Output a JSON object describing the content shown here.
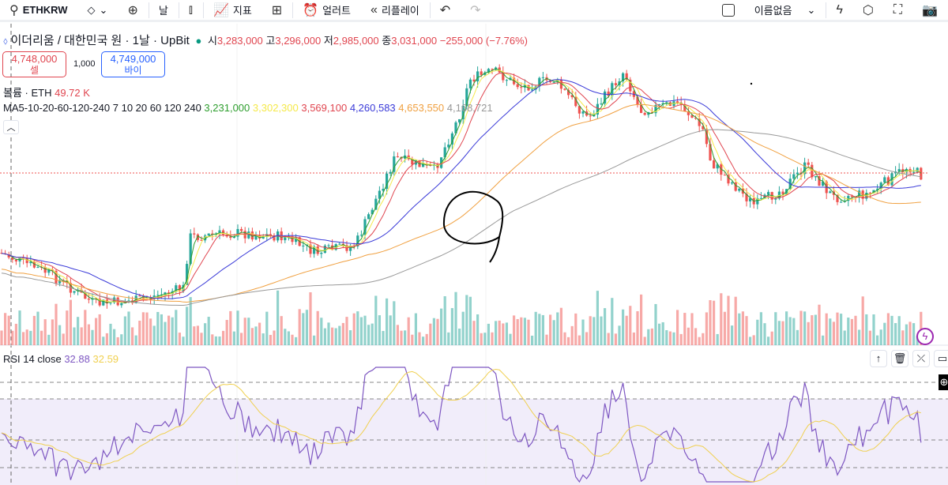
{
  "toolbar": {
    "symbol": "ETHKRW",
    "interval": "날",
    "indicators": "지표",
    "alerts": "얼러트",
    "replay": "리플레이",
    "layout_name": "이름없음"
  },
  "legend": {
    "title": "이더리움 / 대한민국 원 · 1날 · UpBit",
    "o_label": "시",
    "o": "3,283,000",
    "h_label": "고",
    "h": "3,296,000",
    "l_label": "저",
    "l": "2,985,000",
    "c_label": "종",
    "c": "3,031,000",
    "change": "−255,000 (−7.76%)"
  },
  "trade": {
    "sell_price": "4,748,000",
    "sell_label": "셀",
    "qty": "1,000",
    "buy_price": "4,749,000",
    "buy_label": "바이"
  },
  "volume": {
    "label": "볼륨 · ETH",
    "value": "49.72 K"
  },
  "ma": {
    "label": "MA5-10-20-60-120-240 7 10 20 60 120 240",
    "values": [
      {
        "v": "3,231,000",
        "color": "#2e9e2e"
      },
      {
        "v": "3,302,300",
        "color": "#f5e94a"
      },
      {
        "v": "3,569,100",
        "color": "#e0454f"
      },
      {
        "v": "4,260,583",
        "color": "#3a3ad8"
      },
      {
        "v": "4,653,550",
        "color": "#f0a040"
      },
      {
        "v": "4,168,721",
        "color": "#999999"
      }
    ]
  },
  "rsi": {
    "label": "RSI 14 close",
    "value": "32.88",
    "ma_value": "32.59",
    "color": "#7e57c2",
    "ma_color": "#f0d050"
  },
  "colors": {
    "up": "#26a69a",
    "down": "#ef5350"
  }
}
